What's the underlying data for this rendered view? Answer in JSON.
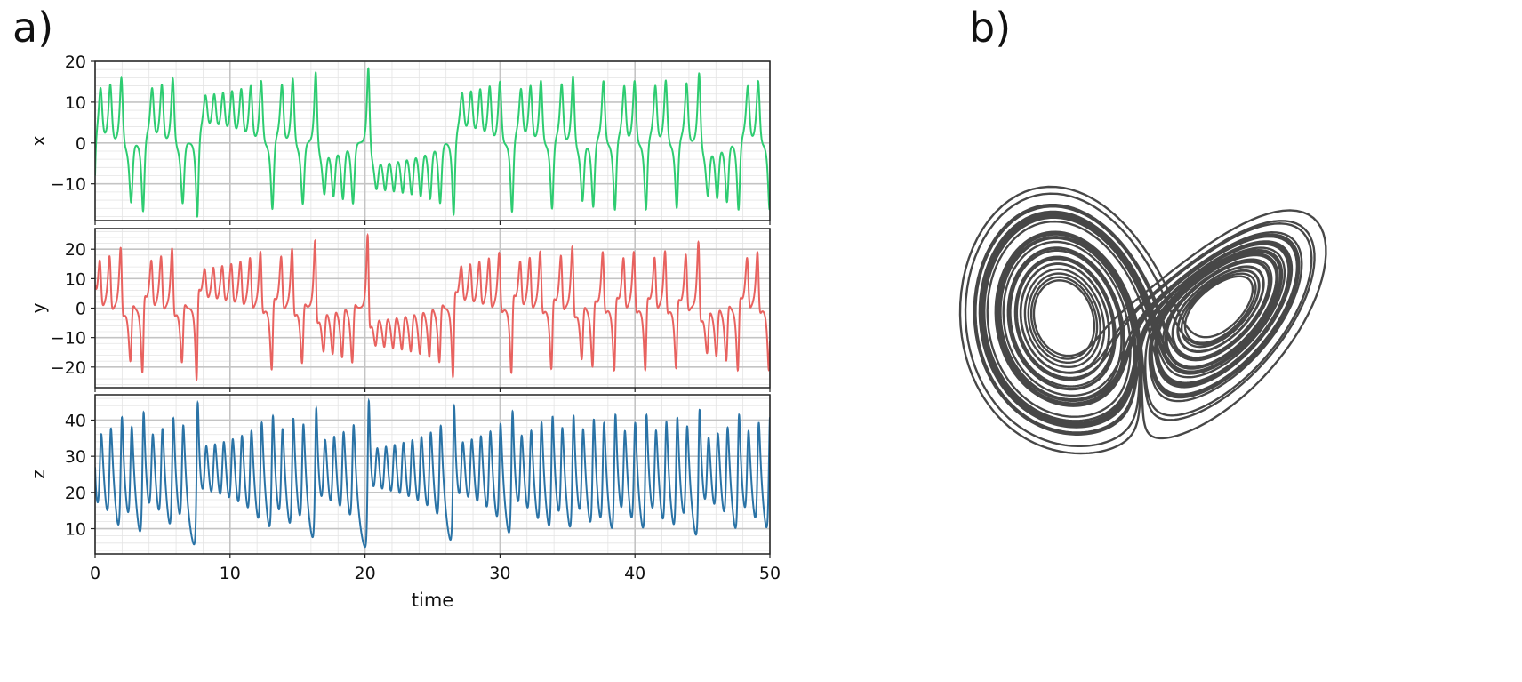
{
  "panels": {
    "a_label": "a)",
    "b_label": "b)"
  },
  "colors": {
    "x": "#2ecc71",
    "y": "#e8625f",
    "z": "#2a73a6",
    "attractor": "#000000"
  },
  "chart_data": [
    {
      "type": "line",
      "panel": "a",
      "xlabel": "time",
      "xlim": [
        0,
        50
      ],
      "xticks": [
        0,
        10,
        20,
        30,
        40,
        50
      ],
      "grid": true,
      "series": [
        {
          "name": "x",
          "ylabel": "x",
          "ylim": [
            -19,
            20
          ],
          "yticks": [
            -10,
            0,
            10,
            20
          ],
          "peak_times": [
            0.3,
            1.2,
            2.1,
            4.2,
            5.1,
            5.9,
            8.2,
            9.5,
            10.3,
            11.5,
            12.4,
            14.3,
            20.6,
            26.1,
            28.4,
            29.3,
            30.2,
            31.8,
            36.8,
            43.2,
            44.0,
            44.9,
            46.5,
            47.4,
            48.3,
            49.2
          ],
          "trough_times": [
            2.7,
            3.5,
            6.5,
            7.6,
            13.2,
            15.5,
            16.0,
            16.6,
            17.2,
            17.8,
            18.4,
            19.0,
            19.6,
            21.4,
            22.0,
            22.5,
            23.1,
            23.6,
            24.2,
            24.8,
            25.4,
            27.3,
            30.0,
            32.6,
            33.2,
            33.7,
            34.3,
            34.9,
            35.4,
            36.0,
            37.6,
            38.2,
            38.8,
            39.4,
            40.0,
            41.3,
            42.0,
            45.0,
            45.7
          ],
          "min": -17.5,
          "max": 18.2
        },
        {
          "name": "y",
          "ylabel": "y",
          "ylim": [
            -27,
            27
          ],
          "yticks": [
            -20,
            -10,
            0,
            10,
            20
          ],
          "min": -24.0,
          "max": 24.6
        },
        {
          "name": "z",
          "ylabel": "z",
          "ylim": [
            3,
            47
          ],
          "yticks": [
            10,
            20,
            30,
            40
          ],
          "min": 5.0,
          "max": 45.0
        }
      ]
    },
    {
      "type": "line",
      "panel": "b",
      "projection": "3d-lorenz-attractor",
      "sigma": 10,
      "rho": 28,
      "beta": 2.6667,
      "axes_visible": false
    }
  ]
}
